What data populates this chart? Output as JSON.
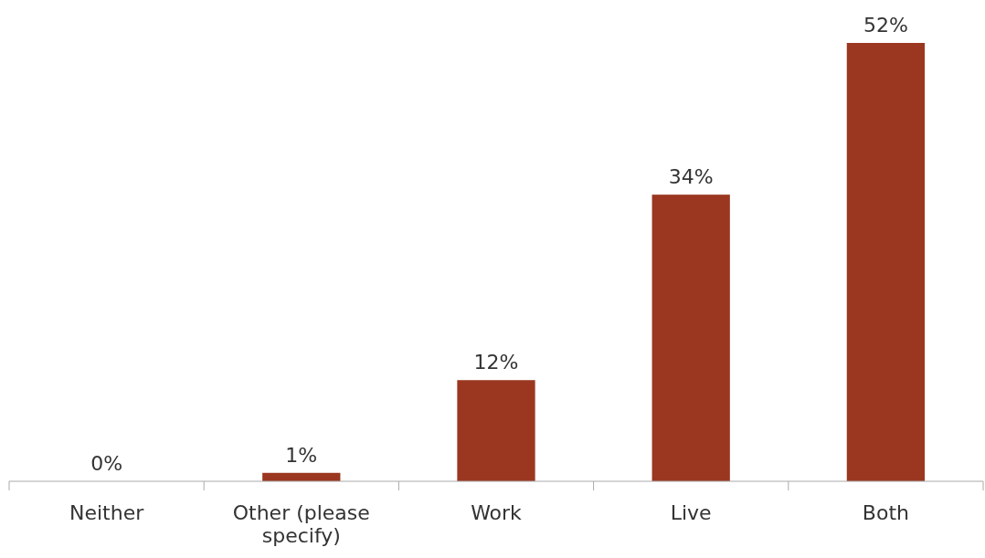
{
  "chart_data": {
    "type": "bar",
    "categories": [
      "Neither",
      "Other (please specify)",
      "Work",
      "Live",
      "Both"
    ],
    "values": [
      0,
      1,
      12,
      34,
      52
    ],
    "value_labels": [
      "0%",
      "1%",
      "12%",
      "34%",
      "52%"
    ],
    "color": "#9b3720"
  }
}
